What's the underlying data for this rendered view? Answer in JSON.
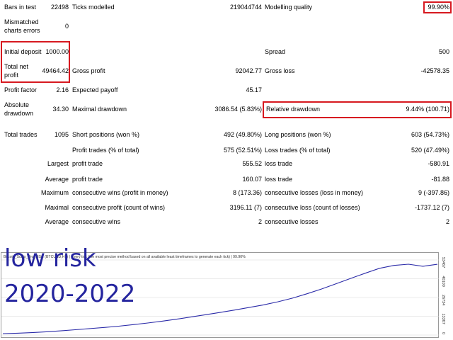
{
  "colors": {
    "highlight": "#d71920",
    "overlay_text": "#24249e",
    "equity_line": "#2a2aa8",
    "chart_text": "#333333"
  },
  "stats": {
    "bars_in_test_label": "Bars in test",
    "bars_in_test": "22498",
    "ticks_modelled_label": "Ticks modelled",
    "ticks_modelled": "219044744",
    "modelling_quality_label": "Modelling quality",
    "modelling_quality": "99.90%",
    "mismatched_label_1": "Mismatched",
    "mismatched_label_2": "charts errors",
    "mismatched": "0",
    "initial_deposit_label": "Initial deposit",
    "initial_deposit": "1000.00",
    "spread_label": "Spread",
    "spread": "500",
    "total_net_profit_label_1": "Total net",
    "total_net_profit_label_2": "profit",
    "total_net_profit": "49464.42",
    "gross_profit_label": "Gross profit",
    "gross_profit": "92042.77",
    "gross_loss_label": "Gross loss",
    "gross_loss": "-42578.35",
    "profit_factor_label": "Profit factor",
    "profit_factor": "2.16",
    "expected_payoff_label": "Expected payoff",
    "expected_payoff": "45.17",
    "absolute_drawdown_label_1": "Absolute",
    "absolute_drawdown_label_2": "drawdown",
    "absolute_drawdown": "34.30",
    "maximal_drawdown_label": "Maximal drawdown",
    "maximal_drawdown": "3086.54 (5.83%)",
    "relative_drawdown_label": "Relative drawdown",
    "relative_drawdown": "9.44% (100.71)",
    "total_trades_label": "Total trades",
    "total_trades": "1095",
    "short_positions_label": "Short positions (won %)",
    "short_positions": "492 (49.80%)",
    "long_positions_label": "Long positions (won %)",
    "long_positions": "603 (54.73%)",
    "profit_trades_label": "Profit trades (% of total)",
    "profit_trades": "575 (52.51%)",
    "loss_trades_label": "Loss trades (% of total)",
    "loss_trades": "520 (47.49%)",
    "largest_label": "Largest",
    "largest_profit_label": "profit trade",
    "largest_profit": "555.52",
    "largest_loss_label": "loss trade",
    "largest_loss": "-580.91",
    "average_label": "Average",
    "average_profit_label": "profit trade",
    "average_profit": "160.07",
    "average_loss_label": "loss trade",
    "average_loss": "-81.88",
    "maximum_label": "Maximum",
    "max_cons_wins_label": "consecutive wins (profit in money)",
    "max_cons_wins": "8 (173.36)",
    "max_cons_losses_label": "consecutive losses (loss in money)",
    "max_cons_losses": "9 (-397.86)",
    "maximal_label": "Maximal",
    "maximal_cons_profit_label": "consecutive profit (count of wins)",
    "maximal_cons_profit": "3196.11 (7)",
    "maximal_cons_loss_label": "consecutive loss (count of losses)",
    "maximal_cons_loss": "-1737.12 (7)",
    "average2_label": "Average",
    "avg_cons_wins_label": "consecutive wins",
    "avg_cons_wins": "2",
    "avg_cons_losses_label": "consecutive losses",
    "avg_cons_losses": "2"
  },
  "chart": {
    "header": "Bitcoin_Scalp_Pro_MSC (BTCUSD,H1) | Every tick (the most precise method based on all available least timeframes to generate each tick) | 99.90%",
    "overlay_line1": "low risk",
    "overlay_line2": "2020-2022",
    "y_ticks": [
      "53467",
      "40100",
      "26734",
      "13367",
      "0"
    ]
  },
  "chart_data": {
    "type": "line",
    "title": "Bitcoin_Scalp_Pro_MSC (BTCUSD,H1)",
    "xlabel": "",
    "ylabel": "",
    "ylim": [
      0,
      53467
    ],
    "y_ticks": [
      53467,
      40100,
      26734,
      13367,
      0
    ],
    "series": [
      {
        "values": [
          1000,
          1300,
          1700,
          2300,
          3000,
          3800,
          4600,
          5400,
          6300,
          7400,
          8600,
          9900,
          11300,
          12900,
          14500,
          16100,
          17800,
          19600,
          21500,
          23700,
          26300,
          29400,
          32800,
          36500,
          40300,
          44000,
          47500,
          49600,
          50464,
          49000,
          50400
        ]
      }
    ]
  }
}
